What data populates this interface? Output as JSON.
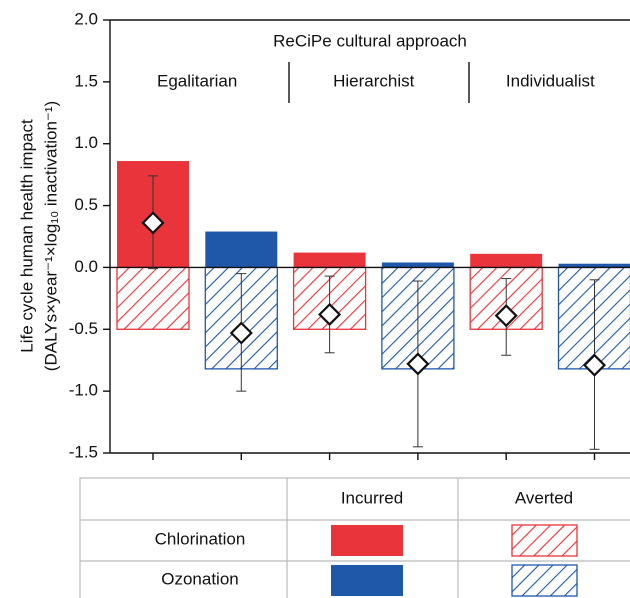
{
  "chart_data": {
    "type": "bar",
    "group_title": "ReCiPe cultural approach",
    "categories": [
      "Egalitarian",
      "Hierarchist",
      "Individualist"
    ],
    "ylabel": [
      "Life cycle human health impact",
      "(DALYs×year⁻¹×log₁₀ inactivation⁻¹)"
    ],
    "legend_columns": [
      "Incurred",
      "Averted"
    ],
    "series": [
      {
        "name": "Chlorination",
        "color": "#e8343a",
        "incurred": [
          0.86,
          0.12,
          0.11
        ],
        "averted": [
          -0.5,
          -0.5,
          -0.5
        ],
        "net": [
          0.36,
          -0.38,
          -0.39
        ],
        "error_low": [
          -0.01,
          -0.69,
          -0.71
        ],
        "error_high": [
          0.74,
          -0.07,
          -0.09
        ]
      },
      {
        "name": "Ozonation",
        "color": "#1f58a8",
        "incurred": [
          0.29,
          0.04,
          0.03
        ],
        "averted": [
          -0.82,
          -0.82,
          -0.82
        ],
        "net": [
          -0.53,
          -0.78,
          -0.79
        ],
        "error_low": [
          -1.0,
          -1.45,
          -1.47
        ],
        "error_high": [
          -0.05,
          -0.11,
          -0.1
        ]
      }
    ],
    "ylim": [
      -1.5,
      2.0
    ],
    "yticks": [
      {
        "value": -1.5,
        "label": "-1.5"
      },
      {
        "value": -1.0,
        "label": "-1.0"
      },
      {
        "value": -0.5,
        "label": "-0.5"
      },
      {
        "value": 0,
        "label": "0.0"
      },
      {
        "value": 0.5,
        "label": "0.5"
      },
      {
        "value": 1.0,
        "label": "1.0"
      },
      {
        "value": 1.5,
        "label": "1.5"
      },
      {
        "value": 2.0,
        "label": "2.0"
      }
    ]
  }
}
